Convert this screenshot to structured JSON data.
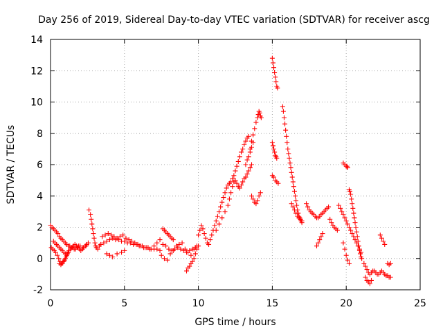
{
  "chart_data": {
    "type": "scatter",
    "title": "Day 256 of 2019, Sidereal Day-to-day VTEC variation (SDTVAR) for receiver ascg",
    "xlabel": "GPS time / hours",
    "ylabel": "SDTVAR / TECUs",
    "xlim": [
      0,
      25
    ],
    "ylim": [
      -2,
      14
    ],
    "xticks": [
      0,
      5,
      10,
      15,
      20,
      25
    ],
    "yticks": [
      -2,
      0,
      2,
      4,
      6,
      8,
      10,
      12,
      14
    ],
    "grid": true,
    "marker": "+",
    "color": "#ff0000",
    "series": [
      {
        "name": "SDTVAR",
        "x": [
          0.0,
          0.1,
          0.2,
          0.3,
          0.4,
          0.5,
          0.6,
          0.7,
          0.8,
          0.9,
          1.0,
          1.1,
          1.2,
          1.3,
          1.4,
          1.5,
          1.6,
          1.7,
          1.8,
          1.9,
          2.0,
          2.2,
          2.4,
          0.05,
          0.15,
          0.25,
          0.35,
          0.45,
          0.55,
          0.65,
          0.75,
          0.85,
          0.95,
          1.05,
          1.15,
          1.25,
          1.35,
          1.45,
          1.55,
          1.65,
          1.75,
          1.85,
          1.95,
          2.05,
          2.15,
          2.25,
          2.35,
          2.45,
          2.55,
          0.2,
          0.3,
          0.4,
          0.5,
          0.6,
          0.7,
          0.8,
          0.9,
          1.0,
          1.1,
          1.2,
          0.6,
          0.7,
          0.8,
          0.9,
          1.0,
          1.1,
          1.2,
          2.6,
          2.7,
          2.75,
          2.8,
          2.85,
          2.9,
          2.95,
          3.0,
          3.05,
          3.1,
          3.2,
          3.3,
          3.4,
          3.6,
          3.8,
          4.0,
          4.2,
          4.4,
          4.6,
          4.8,
          5.0,
          5.2,
          5.4,
          5.6,
          5.8,
          6.0,
          6.2,
          6.4,
          6.6,
          6.8,
          7.0,
          7.2,
          7.4,
          3.5,
          3.7,
          3.9,
          4.1,
          4.3,
          4.5,
          4.7,
          4.9,
          5.1,
          5.3,
          5.5,
          5.7,
          5.9,
          6.1,
          6.3,
          6.5,
          6.7,
          3.8,
          4.0,
          4.2,
          4.5,
          4.8,
          5.0,
          7.0,
          7.2,
          7.4,
          7.6,
          7.8,
          8.0,
          8.2,
          8.4,
          8.6,
          8.8,
          9.0,
          9.2,
          9.4,
          9.6,
          9.8,
          7.5,
          7.7,
          7.9,
          8.1,
          8.3,
          8.5,
          8.7,
          8.9,
          9.1,
          9.3,
          9.5,
          9.7,
          9.9,
          7.6,
          7.7,
          7.8,
          7.9,
          8.0,
          8.1,
          8.2,
          8.3,
          9.2,
          9.3,
          9.4,
          9.5,
          9.6,
          9.7,
          9.8,
          9.9,
          10.0,
          10.0,
          10.1,
          10.2,
          10.3,
          10.4,
          10.5,
          10.6,
          10.7,
          10.8,
          10.9,
          11.0,
          11.1,
          11.2,
          11.3,
          11.4,
          11.5,
          11.6,
          11.7,
          11.8,
          11.9,
          12.0,
          12.1,
          12.2,
          12.3,
          12.4,
          12.5,
          12.6,
          12.7,
          12.8,
          12.9,
          13.0,
          13.1,
          13.2,
          13.3,
          13.4,
          11.2,
          11.4,
          11.6,
          11.8,
          12.0,
          12.1,
          12.2,
          12.3,
          12.4,
          12.5,
          12.6,
          12.7,
          12.8,
          12.9,
          13.0,
          13.1,
          13.2,
          13.3,
          13.4,
          13.5,
          13.6,
          13.5,
          13.6,
          13.7,
          13.8,
          13.9,
          14.0,
          14.05,
          14.1,
          14.15,
          14.2,
          14.25,
          13.6,
          13.7,
          13.8,
          13.9,
          14.0,
          14.1,
          14.2,
          13.2,
          13.3,
          13.4,
          13.5,
          13.6,
          13.7,
          15.0,
          15.05,
          15.1,
          15.15,
          15.2,
          15.25,
          15.3,
          15.35,
          15.0,
          15.05,
          15.1,
          15.15,
          15.2,
          15.25,
          15.3,
          15.0,
          15.1,
          15.2,
          15.3,
          15.4,
          15.7,
          15.75,
          15.8,
          15.85,
          15.9,
          15.95,
          16.0,
          16.05,
          16.1,
          16.15,
          16.2,
          16.25,
          16.3,
          16.35,
          16.4,
          16.45,
          16.5,
          16.55,
          16.6,
          16.65,
          16.7,
          16.75,
          16.8,
          16.85,
          16.9,
          16.95,
          17.0,
          16.3,
          16.4,
          16.5,
          16.6,
          16.7,
          16.8,
          16.9,
          17.0,
          17.3,
          17.4,
          17.5,
          17.6,
          17.7,
          17.8,
          17.9,
          18.0,
          18.1,
          18.2,
          18.3,
          18.4,
          18.5,
          18.6,
          18.7,
          18.8,
          18.0,
          18.1,
          18.2,
          18.3,
          18.4,
          18.9,
          19.0,
          19.1,
          19.2,
          19.3,
          19.4,
          19.8,
          19.9,
          20.0,
          20.05,
          20.1,
          20.2,
          20.25,
          20.3,
          20.35,
          20.4,
          20.45,
          20.5,
          20.55,
          20.6,
          20.65,
          20.7,
          20.75,
          20.8,
          20.85,
          20.9,
          20.95,
          21.0,
          21.05,
          19.5,
          19.6,
          19.7,
          19.8,
          19.9,
          20.0,
          20.1,
          20.2,
          20.3,
          20.4,
          20.5,
          20.6,
          20.7,
          20.8,
          20.9,
          21.0,
          19.8,
          19.9,
          20.0,
          20.1,
          20.2,
          21.2,
          21.3,
          21.4,
          21.5,
          21.6,
          21.7,
          21.8,
          21.9,
          22.0,
          22.1,
          22.2,
          22.3,
          22.4,
          22.5,
          22.6,
          22.7,
          22.8,
          22.9,
          23.0,
          21.3,
          21.4,
          21.5,
          21.6,
          21.7,
          22.3,
          22.4,
          22.5,
          22.6,
          22.8,
          22.9,
          23.0
        ],
        "y": [
          2.1,
          2.0,
          1.9,
          1.8,
          1.7,
          1.6,
          1.4,
          1.3,
          1.2,
          1.1,
          1.0,
          0.9,
          0.8,
          0.8,
          0.7,
          0.7,
          0.6,
          0.6,
          0.7,
          0.8,
          0.8,
          0.7,
          0.8,
          0.7,
          0.6,
          0.5,
          0.4,
          0.2,
          0.0,
          -0.2,
          -0.3,
          -0.2,
          -0.1,
          0.1,
          0.3,
          0.5,
          0.6,
          0.7,
          0.8,
          0.9,
          0.8,
          0.7,
          0.6,
          0.5,
          0.6,
          0.7,
          0.8,
          0.9,
          1.0,
          1.1,
          1.0,
          0.9,
          0.8,
          0.7,
          0.6,
          0.5,
          0.4,
          0.3,
          0.3,
          0.4,
          -0.3,
          -0.4,
          -0.3,
          -0.2,
          0.0,
          0.2,
          0.4,
          3.1,
          2.8,
          2.5,
          2.2,
          1.9,
          1.6,
          1.3,
          1.0,
          0.8,
          0.7,
          0.6,
          0.8,
          0.9,
          1.0,
          1.1,
          1.2,
          1.3,
          1.2,
          1.2,
          1.1,
          1.1,
          1.0,
          1.0,
          0.9,
          0.9,
          0.8,
          0.8,
          0.7,
          0.7,
          0.6,
          0.6,
          0.6,
          0.5,
          1.4,
          1.5,
          1.6,
          1.5,
          1.4,
          1.3,
          1.4,
          1.5,
          1.3,
          1.2,
          1.1,
          1.0,
          0.9,
          0.8,
          0.7,
          0.7,
          0.6,
          0.3,
          0.2,
          0.1,
          0.3,
          0.4,
          0.5,
          0.8,
          1.0,
          1.2,
          0.9,
          0.8,
          0.6,
          0.5,
          0.6,
          0.7,
          0.6,
          0.5,
          0.4,
          0.5,
          0.6,
          0.7,
          0.2,
          0.0,
          -0.1,
          0.3,
          0.5,
          0.8,
          0.9,
          1.0,
          0.6,
          0.4,
          0.2,
          0.6,
          0.8,
          1.9,
          1.8,
          1.7,
          1.6,
          1.5,
          1.4,
          1.3,
          1.2,
          -0.8,
          -0.6,
          -0.5,
          -0.3,
          -0.2,
          0.0,
          0.3,
          0.6,
          0.8,
          1.5,
          1.8,
          2.1,
          1.9,
          1.6,
          1.3,
          1.0,
          0.9,
          1.2,
          1.5,
          1.8,
          2.1,
          2.4,
          2.7,
          3.0,
          3.3,
          3.6,
          3.9,
          4.2,
          4.5,
          4.7,
          4.8,
          4.9,
          5.1,
          5.3,
          5.6,
          5.9,
          6.2,
          6.5,
          6.8,
          7.0,
          7.3,
          7.5,
          7.7,
          7.8,
          1.8,
          2.2,
          2.6,
          3.0,
          3.4,
          3.8,
          4.2,
          4.6,
          4.9,
          5.0,
          4.8,
          4.6,
          4.5,
          4.7,
          4.9,
          5.1,
          5.2,
          5.4,
          5.6,
          5.8,
          6.0,
          7.0,
          7.5,
          7.9,
          8.3,
          8.7,
          9.0,
          9.2,
          9.4,
          9.3,
          9.1,
          9.0,
          4.0,
          3.8,
          3.6,
          3.5,
          3.7,
          4.0,
          4.2,
          6.0,
          6.3,
          6.5,
          6.8,
          7.1,
          7.4,
          12.8,
          12.5,
          12.2,
          11.9,
          11.6,
          11.3,
          11.0,
          10.9,
          7.4,
          7.2,
          7.0,
          6.8,
          6.6,
          6.5,
          6.4,
          5.3,
          5.2,
          5.0,
          4.9,
          4.8,
          9.7,
          9.4,
          9.0,
          8.6,
          8.2,
          7.8,
          7.4,
          7.0,
          6.7,
          6.4,
          6.1,
          5.8,
          5.5,
          5.2,
          4.9,
          4.6,
          4.3,
          4.0,
          3.7,
          3.4,
          3.1,
          2.9,
          2.7,
          2.6,
          2.5,
          2.4,
          2.3,
          3.5,
          3.3,
          3.1,
          2.9,
          2.7,
          2.6,
          2.5,
          2.4,
          3.5,
          3.3,
          3.1,
          3.0,
          2.9,
          2.8,
          2.7,
          2.6,
          2.6,
          2.7,
          2.8,
          2.9,
          3.0,
          3.1,
          3.2,
          3.3,
          0.8,
          1.0,
          1.2,
          1.4,
          1.6,
          2.5,
          2.3,
          2.1,
          2.0,
          1.9,
          1.8,
          6.1,
          6.0,
          5.9,
          5.9,
          5.8,
          4.4,
          4.3,
          4.1,
          3.8,
          3.5,
          3.2,
          2.9,
          2.6,
          2.3,
          2.0,
          1.7,
          1.4,
          1.1,
          0.8,
          0.5,
          0.3,
          0.1,
          0.0,
          3.4,
          3.2,
          3.0,
          2.8,
          2.6,
          2.4,
          2.2,
          2.0,
          1.8,
          1.6,
          1.4,
          1.2,
          1.0,
          0.8,
          0.6,
          0.4,
          1.0,
          0.6,
          0.2,
          -0.1,
          -0.3,
          -0.3,
          -0.5,
          -0.7,
          -0.9,
          -1.0,
          -0.9,
          -0.8,
          -0.8,
          -0.9,
          -1.0,
          -1.0,
          -0.9,
          -0.8,
          -0.9,
          -1.0,
          -1.1,
          -1.1,
          -1.2,
          -1.2,
          -1.2,
          -1.4,
          -1.5,
          -1.6,
          -1.4,
          1.5,
          1.3,
          1.1,
          0.9,
          -0.3,
          -0.4,
          -0.3
        ]
      }
    ]
  }
}
